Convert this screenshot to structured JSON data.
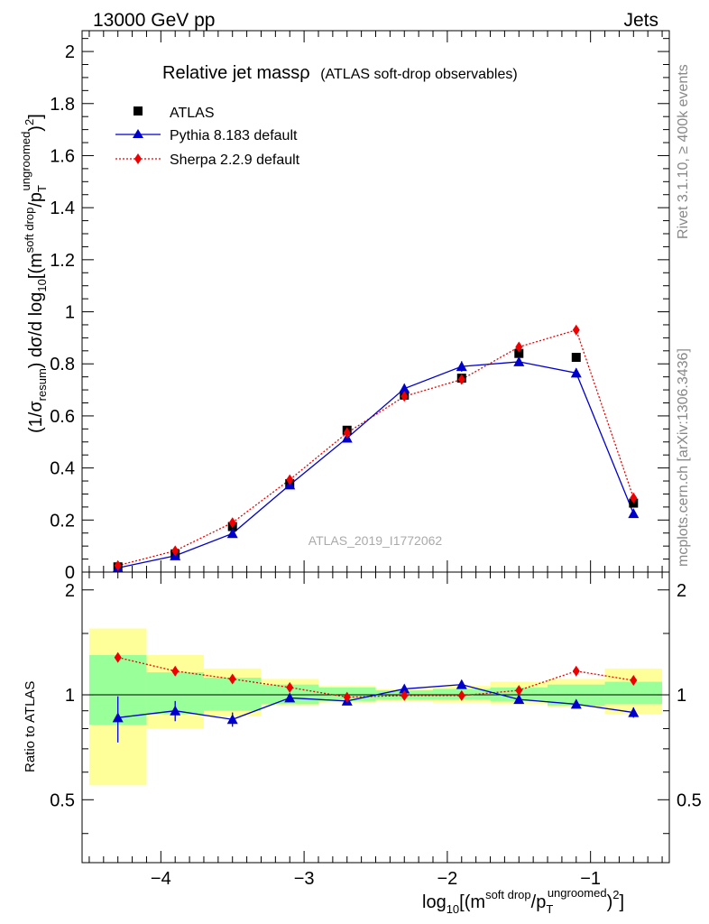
{
  "header": {
    "left": "13000 GeV pp",
    "right": "Jets"
  },
  "side_labels": {
    "rivet": "Rivet 3.1.10, ≥ 400k events",
    "mcplots": "mcplots.cern.ch [arXiv:1306.3436]"
  },
  "watermark": "ATLAS_2019_I1772062",
  "colors": {
    "data": "#000000",
    "pythia": "#0000cc",
    "sherpa": "#ee0000",
    "band_inner": "#99ff99",
    "band_outer": "#ffff99"
  },
  "chart_data": [
    {
      "type": "scatter",
      "title_main": "Relative jet massρ",
      "title_sub": "(ATLAS soft-drop observables)",
      "ylabel_parts": {
        "p1": "(1/σ",
        "sub1": "resum",
        "p2": ") dσ/d log",
        "sub2": "10",
        "p3": "[(m",
        "sup1": "soft drop",
        "p4": "/p",
        "sub3": "T",
        "sup2": "ungroomed",
        "p5": ")",
        "sup3": "2",
        "p6": "]"
      },
      "xlim": [
        -4.55,
        -0.45
      ],
      "ylim": [
        0,
        2.08
      ],
      "yticks": [
        0,
        0.2,
        0.4,
        0.6,
        0.8,
        1,
        1.2,
        1.4,
        1.6,
        1.8,
        2
      ],
      "ytick_labels": [
        "0",
        "0.2",
        "0.4",
        "0.6",
        "0.8",
        "1",
        "1.2",
        "1.4",
        "1.6",
        "1.8",
        "2"
      ],
      "legend": [
        {
          "name": "ATLAS",
          "marker": "square"
        },
        {
          "name": "Pythia 8.183 default",
          "marker": "triangle"
        },
        {
          "name": "Sherpa 2.2.9 default",
          "marker": "diamond"
        }
      ],
      "x": [
        -4.3,
        -3.9,
        -3.5,
        -3.1,
        -2.7,
        -2.3,
        -1.9,
        -1.5,
        -1.1,
        -0.7
      ],
      "series": [
        {
          "name": "ATLAS",
          "values": [
            0.02,
            0.07,
            0.175,
            0.34,
            0.545,
            0.68,
            0.745,
            0.84,
            0.825,
            0.265
          ]
        },
        {
          "name": "Pythia 8.183 default",
          "values": [
            0.016,
            0.063,
            0.148,
            0.335,
            0.515,
            0.705,
            0.79,
            0.808,
            0.765,
            0.225
          ],
          "errors": [
            0.003,
            0.005,
            0.01,
            0.012,
            0.012,
            0.018,
            0.02,
            0.015,
            0.018,
            0.01
          ]
        },
        {
          "name": "Sherpa 2.2.9 default",
          "values": [
            0.025,
            0.082,
            0.19,
            0.355,
            0.535,
            0.675,
            0.74,
            0.865,
            0.93,
            0.285
          ],
          "errors": [
            0.002,
            0.004,
            0.006,
            0.008,
            0.01,
            0.012,
            0.012,
            0.015,
            0.016,
            0.01
          ]
        }
      ]
    },
    {
      "type": "scatter",
      "ylabel": "Ratio to ATLAS",
      "xlabel_parts": {
        "p1": "log",
        "sub1": "10",
        "p2": "[(m",
        "sup1": "soft drop",
        "p3": "/p",
        "sub2": "T",
        "sup2": "ungroomed",
        "p4": ")",
        "sup3": "2",
        "p5": "]"
      },
      "xlim": [
        -4.55,
        -0.45
      ],
      "ylim": [
        0.33,
        2.25
      ],
      "xticks": [
        -4,
        -3,
        -2,
        -1
      ],
      "xtick_labels": [
        "−4",
        "−3",
        "−2",
        "−1"
      ],
      "yticks": [
        0.5,
        1,
        2
      ],
      "ytick_labels": [
        "0.5",
        "1",
        "2"
      ],
      "bin_edges": [
        -4.5,
        -4.1,
        -3.7,
        -3.3,
        -2.9,
        -2.5,
        -2.1,
        -1.7,
        -1.3,
        -0.9,
        -0.5
      ],
      "band_inner": [
        [
          0.82,
          1.3
        ],
        [
          0.88,
          1.16
        ],
        [
          0.9,
          1.12
        ],
        [
          0.94,
          1.07
        ],
        [
          0.96,
          1.05
        ],
        [
          0.97,
          1.03
        ],
        [
          0.97,
          1.04
        ],
        [
          0.96,
          1.05
        ],
        [
          0.93,
          1.07
        ],
        [
          0.94,
          1.09
        ]
      ],
      "band_outer": [
        [
          0.55,
          1.55
        ],
        [
          0.8,
          1.3
        ],
        [
          0.87,
          1.19
        ],
        [
          0.93,
          1.11
        ],
        [
          0.95,
          1.06
        ],
        [
          0.96,
          1.04
        ],
        [
          0.95,
          1.06
        ],
        [
          0.94,
          1.09
        ],
        [
          0.92,
          1.11
        ],
        [
          0.88,
          1.19
        ]
      ],
      "x": [
        -4.3,
        -3.9,
        -3.5,
        -3.1,
        -2.7,
        -2.3,
        -1.9,
        -1.5,
        -1.1,
        -0.7
      ],
      "series": [
        {
          "name": "Pythia 8.183 default",
          "values": [
            0.86,
            0.9,
            0.85,
            0.98,
            0.96,
            1.04,
            1.07,
            0.97,
            0.94,
            0.89
          ],
          "errors": [
            0.13,
            0.06,
            0.04,
            0.02,
            0.015,
            0.025,
            0.025,
            0.02,
            0.02,
            0.03
          ]
        },
        {
          "name": "Sherpa 2.2.9 default",
          "values": [
            1.28,
            1.17,
            1.11,
            1.05,
            0.985,
            0.995,
            0.995,
            1.03,
            1.17,
            1.1
          ],
          "errors": [
            0.03,
            0.01,
            0.01,
            0.01,
            0.01,
            0.01,
            0.01,
            0.01,
            0.01,
            0.01
          ]
        }
      ]
    }
  ]
}
